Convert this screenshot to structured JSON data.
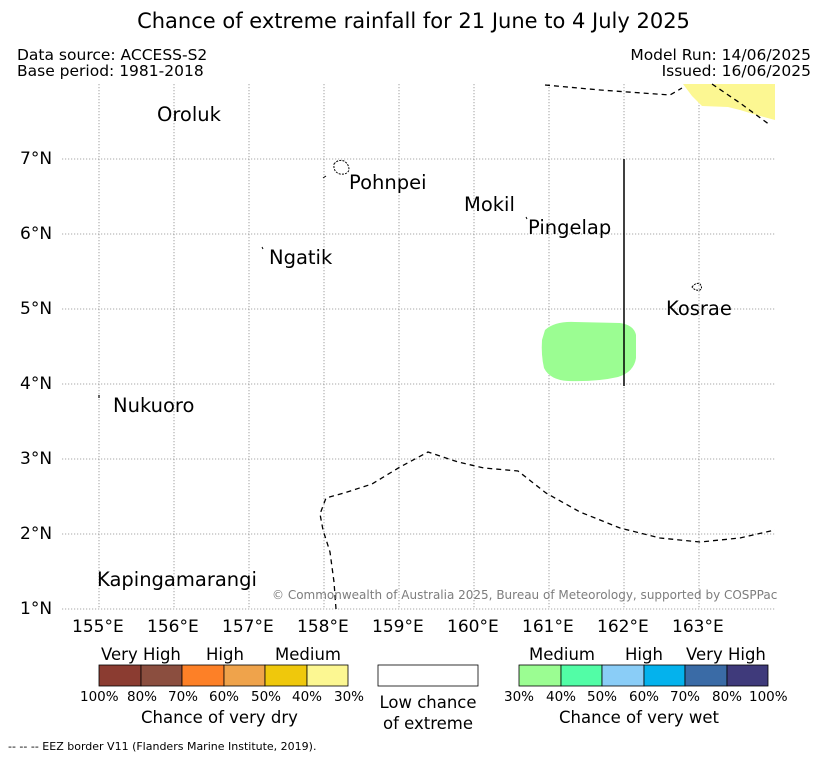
{
  "title": "Chance of extreme rainfall for 21 June to 4 July 2025",
  "meta": {
    "data_source": "Data source: ACCESS-S2",
    "base_period": "Base period: 1981-2018",
    "model_run": "Model Run: 14/06/2025",
    "issued": "Issued: 16/06/2025"
  },
  "map": {
    "lon_ticks": [
      "155°E",
      "156°E",
      "157°E",
      "158°E",
      "159°E",
      "160°E",
      "161°E",
      "162°E",
      "163°E"
    ],
    "lat_ticks": [
      "7°N",
      "6°N",
      "5°N",
      "4°N",
      "3°N",
      "2°N",
      "1°N"
    ],
    "places": {
      "oroluk": "Oroluk",
      "pohnpei": "Pohnpei",
      "mokil": "Mokil",
      "pingelap": "Pingelap",
      "ngatik": "Ngatik",
      "kosrae": "Kosrae",
      "nukuoro": "Nukuoro",
      "kapingamarangi": "Kapingamarangi"
    },
    "credit": "© Commonwealth of Australia 2025, Bureau of Meteorology, supported by COSPPac",
    "shaded_areas": [
      {
        "category": "very wet",
        "probability_band": "30%-40%",
        "color": "#9bfd92"
      },
      {
        "category": "very dry",
        "probability_band": "30%-40%",
        "color": "#fcf792"
      }
    ]
  },
  "legend": {
    "dry": {
      "headers": [
        "Very High",
        "High",
        "Medium"
      ],
      "colors": [
        "#8b3c31",
        "#8b4e3f",
        "#fd8027",
        "#efa34b",
        "#efc80c",
        "#fcf792"
      ],
      "ticks": [
        "100%",
        "80%",
        "70%",
        "60%",
        "50%",
        "40%",
        "30%"
      ],
      "caption": "Chance of very dry"
    },
    "low": {
      "caption_line1": "Low chance",
      "caption_line2": "of extreme"
    },
    "wet": {
      "headers": [
        "Medium",
        "High",
        "Very High"
      ],
      "colors": [
        "#9bfd92",
        "#52fda6",
        "#8acdf7",
        "#04b2ed",
        "#3a6ba6",
        "#3f3a7b"
      ],
      "ticks": [
        "30%",
        "40%",
        "50%",
        "60%",
        "70%",
        "80%",
        "100%"
      ],
      "caption": "Chance of very wet"
    }
  },
  "footer": "--  --  -- EEZ border V11 (Flanders Marine Institute, 2019)."
}
